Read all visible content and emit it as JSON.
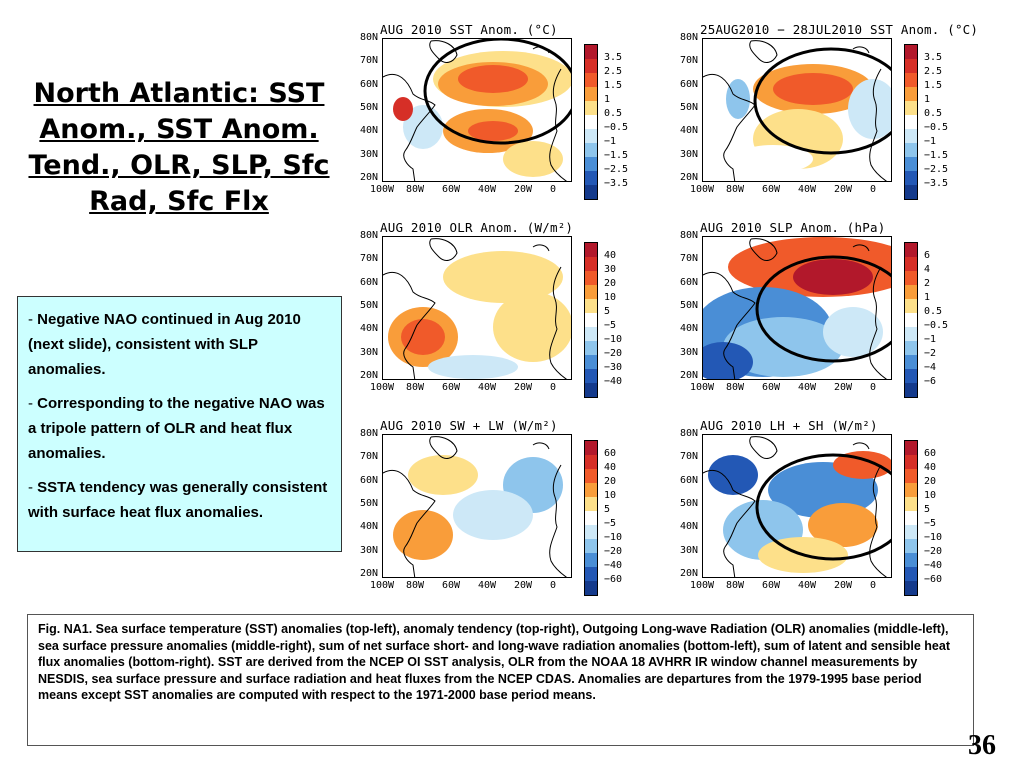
{
  "title": "North Atlantic: SST Anom., SST Anom. Tend., OLR, SLP, Sfc Rad, Sfc Flx",
  "bullets": [
    {
      "dash": "- ",
      "text": "Negative NAO continued in Aug 2010 (next slide), consistent with SLP anomalies."
    },
    {
      "dash": "- ",
      "text": "Corresponding to the negative NAO was a tripole pattern of OLR and heat flux anomalies."
    },
    {
      "dash": "- ",
      "text": "SSTA tendency was generally consistent with surface heat flux anomalies."
    }
  ],
  "lat_labels": [
    "80N",
    "70N",
    "60N",
    "50N",
    "40N",
    "30N",
    "20N"
  ],
  "lon_labels": [
    "100W",
    "80W",
    "60W",
    "40W",
    "20W",
    "0"
  ],
  "panels": [
    {
      "title": "AUG 2010 SST Anom. (°C)",
      "scale": [
        "3.5",
        "2.5",
        "1.5",
        "1",
        "0.5",
        "−0.5",
        "−1",
        "−1.5",
        "−2.5",
        "−3.5"
      ],
      "pattern": "sst",
      "circle": true
    },
    {
      "title": "25AUG2010 − 28JUL2010 SST Anom. (°C)",
      "scale": [
        "3.5",
        "2.5",
        "1.5",
        "1",
        "0.5",
        "−0.5",
        "−1",
        "−1.5",
        "−2.5",
        "−3.5"
      ],
      "pattern": "tend",
      "circle": true
    },
    {
      "title": "AUG 2010 OLR Anom. (W/m²)",
      "scale": [
        "40",
        "30",
        "20",
        "10",
        "5",
        "−5",
        "−10",
        "−20",
        "−30",
        "−40"
      ],
      "pattern": "olr",
      "circle": false
    },
    {
      "title": "AUG 2010 SLP Anom. (hPa)",
      "scale": [
        "6",
        "4",
        "2",
        "1",
        "0.5",
        "−0.5",
        "−1",
        "−2",
        "−4",
        "−6"
      ],
      "pattern": "slp",
      "circle": true
    },
    {
      "title": "AUG 2010 SW + LW (W/m²)",
      "scale": [
        "60",
        "40",
        "20",
        "10",
        "5",
        "−5",
        "−10",
        "−20",
        "−40",
        "−60"
      ],
      "pattern": "swlw",
      "circle": false
    },
    {
      "title": "AUG 2010 LH + SH (W/m²)",
      "scale": [
        "60",
        "40",
        "20",
        "10",
        "5",
        "−5",
        "−10",
        "−20",
        "−40",
        "−60"
      ],
      "pattern": "lhsh",
      "circle": true
    }
  ],
  "colors": {
    "scale": [
      "#b2182b",
      "#d62f27",
      "#f05a2a",
      "#f99d3a",
      "#fde08a",
      "#ffffff",
      "#cde8f7",
      "#8ec5ec",
      "#4a8ed6",
      "#2358b5",
      "#143a8c"
    ],
    "land": "#ffffff",
    "ocean_neutral": "#ffffff",
    "bullet_box": "#ccffff"
  },
  "caption": "Fig. NA1. Sea surface temperature (SST) anomalies (top-left), anomaly tendency (top-right), Outgoing Long-wave Radiation (OLR) anomalies (middle-left), sea surface pressure anomalies (middle-right), sum of net surface short- and long-wave radiation anomalies (bottom-left), sum of latent and sensible heat flux anomalies (bottom-right). SST are derived from the NCEP OI SST analysis, OLR from the NOAA 18 AVHRR IR window channel measurements by NESDIS, sea surface pressure and surface radiation and heat fluxes from the NCEP CDAS. Anomalies are departures from the 1979-1995 base period means except SST anomalies are computed with respect to the 1971-2000 base period means.",
  "page_number": "36"
}
